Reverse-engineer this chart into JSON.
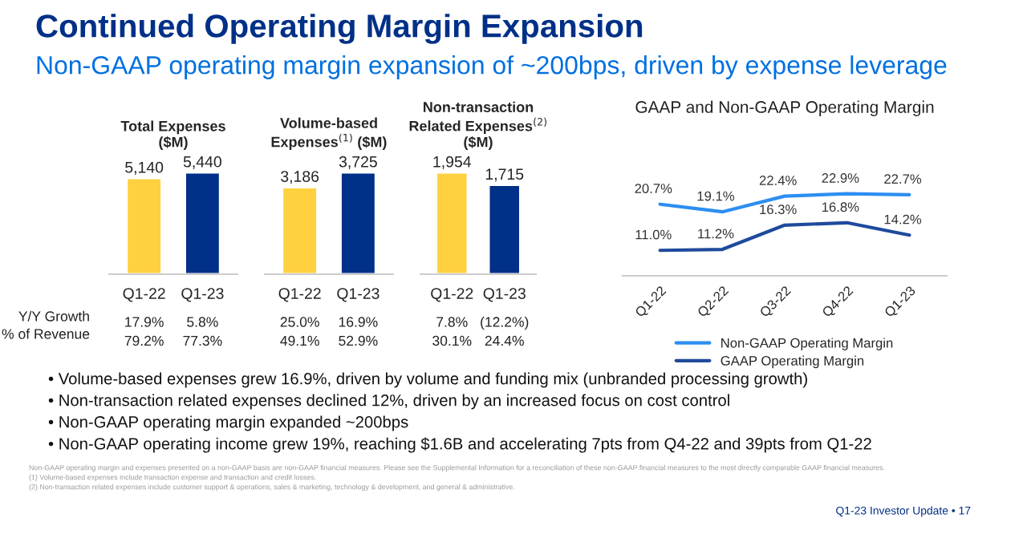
{
  "chart_data": [
    {
      "type": "other",
      "title": "Continued Operating Margin Expansion",
      "subtitle": "Non-GAAP operating margin expansion of ~200bps, driven by expense leverage",
      "annotations": [
        "Y/Y Growth",
        "% of Revenue",
        "• Volume-based expenses grew 16.9%, driven by volume and funding mix (unbranded processing growth)",
        "• Non-transaction related expenses declined 12%, driven by an increased focus on cost control",
        "• Non-GAAP operating margin expanded ~200bps",
        "• Non-GAAP operating income grew 19%, reaching $1.6B and accelerating 7pts from Q4-22 and 39pts from Q1-22",
        "Non-GAAP operating margin and expenses presented on a non-GAAP basis are non-GAAP financial measures. Please see the Supplemental Information for a reconciliation of these non-GAAP financial measures to the most directly comparable GAAP financial measures.",
        "(1) Volume-based expenses include transaction expense and transaction and credit losses.",
        "(2) Non-transaction related expenses include customer support & operations, sales & marketing, technology & development, and general & administrative.",
        "Q1-23 Investor Update • 17"
      ]
    },
    {
      "type": "bar",
      "title": "Total Expenses\n($M)",
      "categories": [
        "Q1-22",
        "Q1-23"
      ],
      "values": [
        5140,
        5440
      ],
      "colors": [
        "#ffd140",
        "#003087"
      ],
      "value_labels": [
        "5,140",
        "5,440"
      ],
      "annotations": [
        "17.9%",
        "5.8%",
        "79.2%",
        "77.3%"
      ]
    },
    {
      "type": "bar",
      "title": "Volume-based\nExpenses$^{(1)}$ ($M)",
      "categories": [
        "Q1-22",
        "Q1-23"
      ],
      "values": [
        3186,
        3725
      ],
      "colors": [
        "#ffd140",
        "#003087"
      ],
      "value_labels": [
        "3,186",
        "3,725"
      ],
      "annotations": [
        "25.0%",
        "16.9%",
        "49.1%",
        "52.9%"
      ]
    },
    {
      "type": "bar",
      "title": "Non-transaction\nRelated Expenses$^{(2)}$\n($M)",
      "categories": [
        "Q1-22",
        "Q1-23"
      ],
      "values": [
        1954,
        1715
      ],
      "colors": [
        "#ffd140",
        "#003087"
      ],
      "value_labels": [
        "1,954",
        "1,715"
      ],
      "annotations": [
        "7.8%",
        "(12.2%)",
        "30.1%",
        "24.4%"
      ]
    },
    {
      "type": "line",
      "title": "GAAP and Non-GAAP Operating Margin",
      "categories": [
        "Q1-22",
        "Q2-22",
        "Q3-22",
        "Q4-22",
        "Q1-23"
      ],
      "legend": "bottom",
      "series": [
        {
          "name": "Non-GAAP Operating Margin",
          "color": "#2d8ef0",
          "values": [
            20.7,
            19.1,
            22.4,
            22.9,
            22.7
          ],
          "value_labels": [
            "20.7%",
            "19.1%",
            "22.4%",
            "22.9%",
            "22.7%"
          ]
        },
        {
          "name": "GAAP Operating Margin",
          "color": "#1f4a9c",
          "values": [
            11.0,
            11.2,
            16.3,
            16.8,
            14.2
          ],
          "value_labels": [
            "11.0%",
            "11.2%",
            "16.3%",
            "16.8%",
            "14.2%"
          ]
        }
      ]
    }
  ]
}
